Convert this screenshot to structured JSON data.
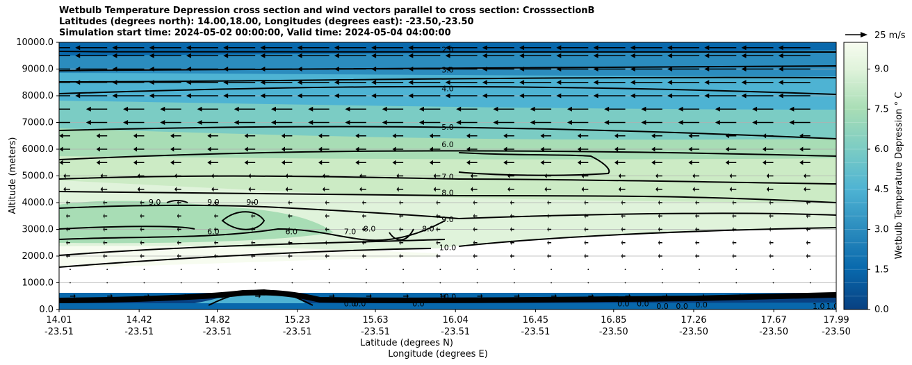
{
  "chart_data": {
    "type": "contour",
    "title_lines": [
      "Wetbulb Temperature Depression cross section and wind vectors parallel to cross section: CrosssectionB",
      "Latitudes (degrees north): 14.00,18.00, Longitudes (degrees east): -23.50,-23.50",
      "Simulation start time: 2024-05-02 00:00:00, Valid time: 2024-05-04 04:00:00"
    ],
    "xlabel_lat": "Latitude (degrees N)",
    "xlabel_lon": "Longitude (degrees E)",
    "ylabel": "Altitude (meters)",
    "ylim": [
      0,
      10000
    ],
    "xlim": [
      14.01,
      17.99
    ],
    "y_ticks": [
      "0.0",
      "1000.0",
      "2000.0",
      "3000.0",
      "4000.0",
      "5000.0",
      "6000.0",
      "7000.0",
      "8000.0",
      "9000.0",
      "10000.0"
    ],
    "x_ticks": [
      {
        "lat": "14.01",
        "lon": "-23.51"
      },
      {
        "lat": "14.42",
        "lon": "-23.51"
      },
      {
        "lat": "14.82",
        "lon": "-23.51"
      },
      {
        "lat": "15.23",
        "lon": "-23.51"
      },
      {
        "lat": "15.63",
        "lon": "-23.51"
      },
      {
        "lat": "16.04",
        "lon": "-23.51"
      },
      {
        "lat": "16.45",
        "lon": "-23.51"
      },
      {
        "lat": "16.85",
        "lon": "-23.50"
      },
      {
        "lat": "17.26",
        "lon": "-23.50"
      },
      {
        "lat": "17.67",
        "lon": "-23.50"
      },
      {
        "lat": "17.99",
        "lon": "-23.50"
      }
    ],
    "colorbar": {
      "label": "Wetbulb Temperature Depression $^\\circ$C",
      "label_display": "Wetbulb Temperature Depression ° C",
      "range": [
        0,
        10
      ],
      "ticks": [
        "0.0",
        "1.5",
        "3.0",
        "4.5",
        "6.0",
        "7.5",
        "9.0"
      ],
      "colormap": "GnBu_r"
    },
    "quiver_key": "25 m/s",
    "contour_labels": [
      {
        "text": "2.0",
        "lat": 16.0,
        "alt": 9700
      },
      {
        "text": "3.0",
        "lat": 16.0,
        "alt": 8950
      },
      {
        "text": "4.0",
        "lat": 16.0,
        "alt": 8250
      },
      {
        "text": "5.0",
        "lat": 16.0,
        "alt": 6800
      },
      {
        "text": "6.0",
        "lat": 16.0,
        "alt": 6150
      },
      {
        "text": "7.0",
        "lat": 16.0,
        "alt": 4950
      },
      {
        "text": "8.0",
        "lat": 16.0,
        "alt": 4350
      },
      {
        "text": "9.0",
        "lat": 16.0,
        "alt": 3350
      },
      {
        "text": "10.0",
        "lat": 16.0,
        "alt": 2300
      },
      {
        "text": "9.0",
        "lat": 14.5,
        "alt": 4000
      },
      {
        "text": "9.0",
        "lat": 14.8,
        "alt": 4000
      },
      {
        "text": "9.0",
        "lat": 15.0,
        "alt": 4000
      },
      {
        "text": "6.0",
        "lat": 14.8,
        "alt": 2900
      },
      {
        "text": "6.0",
        "lat": 15.2,
        "alt": 2900
      },
      {
        "text": "7.0",
        "lat": 15.5,
        "alt": 2900
      },
      {
        "text": "8.0",
        "lat": 15.6,
        "alt": 3000
      },
      {
        "text": "8.0",
        "lat": 15.9,
        "alt": 3000
      },
      {
        "text": "0.0",
        "lat": 15.5,
        "alt": 200
      },
      {
        "text": "0.0",
        "lat": 15.55,
        "alt": 200
      },
      {
        "text": "0.0",
        "lat": 15.85,
        "alt": 200
      },
      {
        "text": "10.0",
        "lat": 16.0,
        "alt": 450
      },
      {
        "text": "0.0",
        "lat": 16.9,
        "alt": 200
      },
      {
        "text": "0.0",
        "lat": 17.0,
        "alt": 200
      },
      {
        "text": "0.0",
        "lat": 17.1,
        "alt": 100
      },
      {
        "text": "0.0",
        "lat": 17.2,
        "alt": 100
      },
      {
        "text": "0.0",
        "lat": 17.3,
        "alt": 150
      },
      {
        "text": "1.0",
        "lat": 17.9,
        "alt": 100
      },
      {
        "text": "1.0",
        "lat": 17.97,
        "alt": 100
      }
    ]
  }
}
